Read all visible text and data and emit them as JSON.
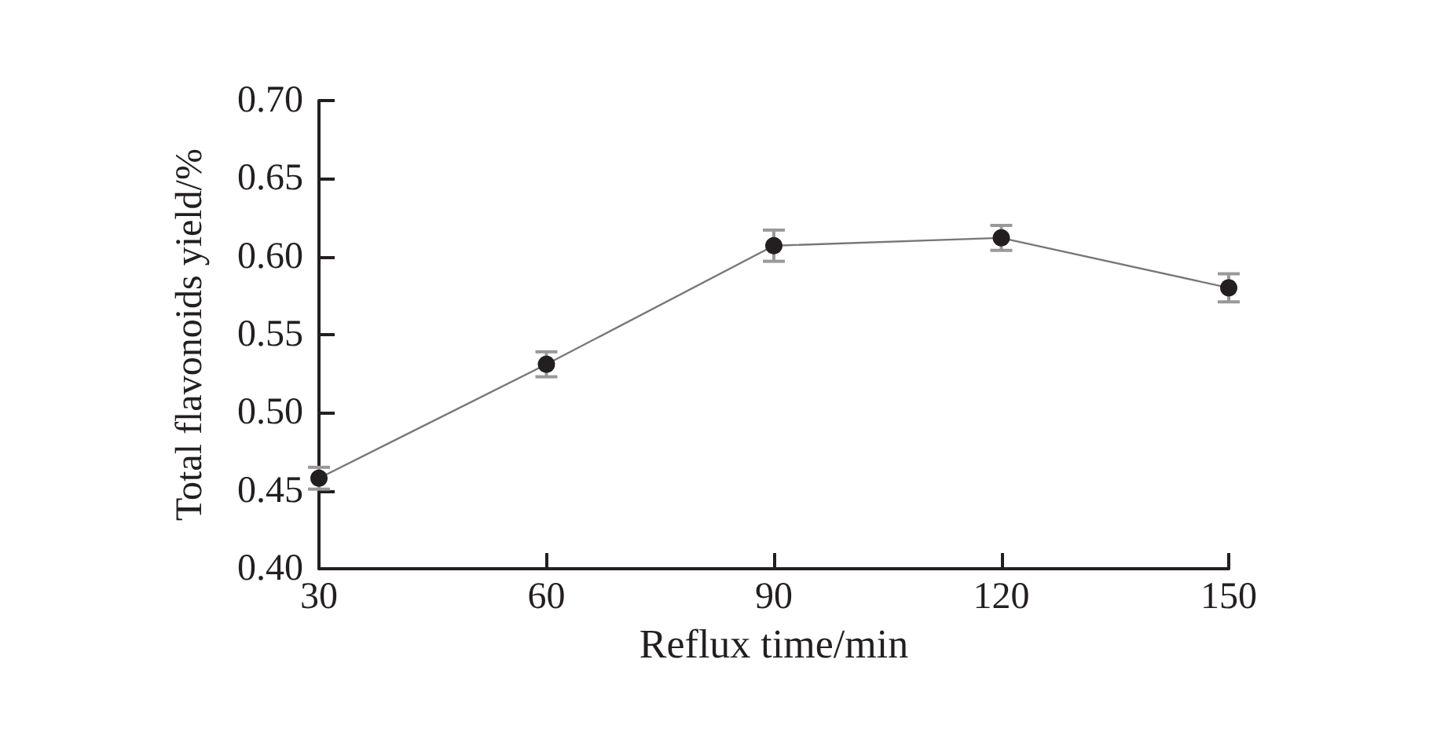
{
  "chart_data": {
    "type": "line",
    "xlabel": "Reflux time/min",
    "ylabel": "Total flavonoids yield/%",
    "x": [
      30,
      60,
      90,
      120,
      150
    ],
    "values": [
      0.458,
      0.531,
      0.607,
      0.612,
      0.58
    ],
    "errors": [
      0.007,
      0.008,
      0.01,
      0.008,
      0.009
    ],
    "color": "#231f20",
    "marker": "circle",
    "line_style": "solid",
    "xlim": [
      30,
      150
    ],
    "xticks": [
      30,
      60,
      90,
      120,
      150
    ],
    "ylim": [
      0.4,
      0.7
    ],
    "yticks": [
      {
        "value": 0.4,
        "label": "0.40"
      },
      0.45,
      {
        "value": 0.5,
        "label": "0.50"
      },
      0.55,
      {
        "value": 0.6,
        "label": "0.60"
      },
      0.65,
      {
        "value": 0.7,
        "label": "0.70"
      }
    ]
  }
}
